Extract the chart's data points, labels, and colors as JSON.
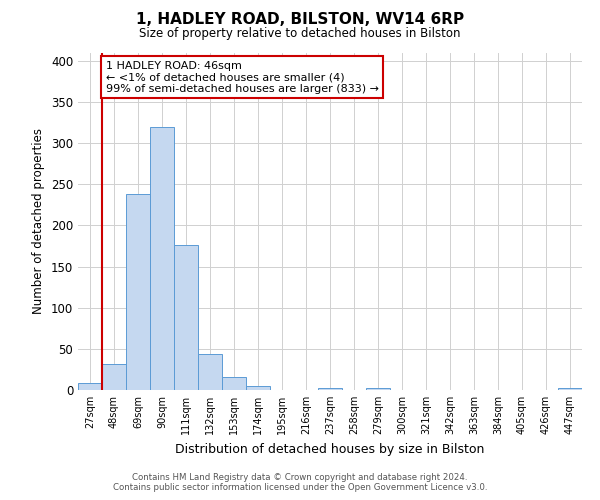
{
  "title": "1, HADLEY ROAD, BILSTON, WV14 6RP",
  "subtitle": "Size of property relative to detached houses in Bilston",
  "xlabel": "Distribution of detached houses by size in Bilston",
  "ylabel": "Number of detached properties",
  "bin_labels": [
    "27sqm",
    "48sqm",
    "69sqm",
    "90sqm",
    "111sqm",
    "132sqm",
    "153sqm",
    "174sqm",
    "195sqm",
    "216sqm",
    "237sqm",
    "258sqm",
    "279sqm",
    "300sqm",
    "321sqm",
    "342sqm",
    "363sqm",
    "384sqm",
    "405sqm",
    "426sqm",
    "447sqm"
  ],
  "bar_heights": [
    8,
    32,
    238,
    320,
    176,
    44,
    16,
    5,
    0,
    0,
    3,
    0,
    2,
    0,
    0,
    0,
    0,
    0,
    0,
    0,
    2
  ],
  "bar_color": "#c5d8f0",
  "bar_edge_color": "#5b9bd5",
  "annotation_line1": "1 HADLEY ROAD: 46sqm",
  "annotation_line2": "← <1% of detached houses are smaller (4)",
  "annotation_line3": "99% of semi-detached houses are larger (833) →",
  "annotation_box_color": "#ffffff",
  "annotation_box_edge_color": "#cc0000",
  "property_line_color": "#cc0000",
  "ylim": [
    0,
    410
  ],
  "yticks": [
    0,
    50,
    100,
    150,
    200,
    250,
    300,
    350,
    400
  ],
  "footer_line1": "Contains HM Land Registry data © Crown copyright and database right 2024.",
  "footer_line2": "Contains public sector information licensed under the Open Government Licence v3.0.",
  "bg_color": "#ffffff",
  "grid_color": "#d0d0d0"
}
